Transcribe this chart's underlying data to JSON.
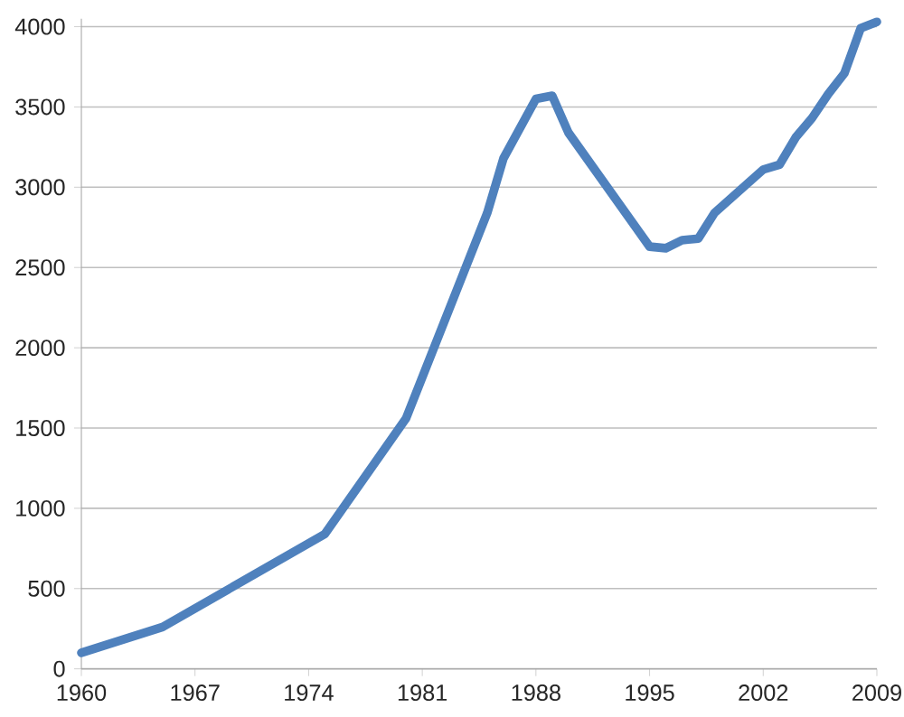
{
  "chart_data": {
    "type": "line",
    "x": [
      1960,
      1965,
      1975,
      1980,
      1985,
      1986,
      1988,
      1989,
      1990,
      1995,
      1996,
      1997,
      1998,
      1999,
      2000,
      2001,
      2002,
      2003,
      2004,
      2005,
      2006,
      2007,
      2008,
      2009
    ],
    "values": [
      100,
      260,
      840,
      1560,
      2840,
      3180,
      3550,
      3570,
      3340,
      2630,
      2620,
      2670,
      2680,
      2840,
      2930,
      3020,
      3110,
      3140,
      3310,
      3430,
      3580,
      3710,
      3990,
      4030
    ],
    "color": "#4f81bd",
    "marker": "none",
    "line_style": "solid",
    "grid": "y",
    "xlim": [
      1960,
      2009
    ],
    "ylim": [
      0,
      4050
    ],
    "xticks": [
      1960,
      1967,
      1974,
      1981,
      1988,
      1995,
      2002,
      2009
    ],
    "yticks": [
      0,
      500,
      1000,
      1500,
      2000,
      2500,
      3000,
      3500,
      4000
    ]
  }
}
